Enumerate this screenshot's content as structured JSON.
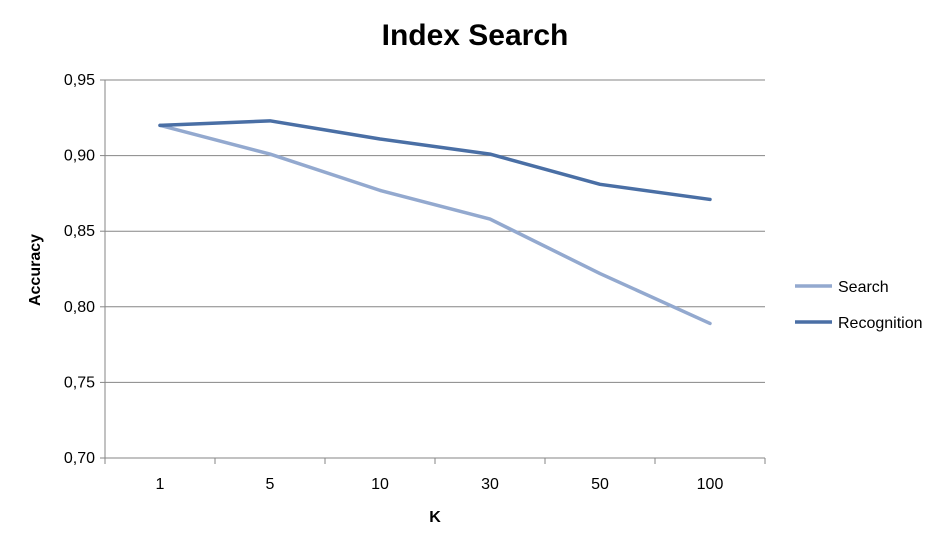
{
  "chart_data": {
    "type": "line",
    "title": "Index Search",
    "xlabel": "K",
    "ylabel": "Accuracy",
    "categories": [
      "1",
      "5",
      "10",
      "30",
      "50",
      "100"
    ],
    "y_ticks": [
      "0,70",
      "0,75",
      "0,80",
      "0,85",
      "0,90",
      "0,95"
    ],
    "ylim": [
      0.7,
      0.95
    ],
    "grid": true,
    "legend_position": "right",
    "series": [
      {
        "name": "Search",
        "color": "#93a9cf",
        "values": [
          0.92,
          0.901,
          0.877,
          0.858,
          0.822,
          0.789
        ]
      },
      {
        "name": "Recognition",
        "color": "#4a6fa5",
        "values": [
          0.92,
          0.923,
          0.911,
          0.901,
          0.881,
          0.871
        ]
      }
    ]
  }
}
